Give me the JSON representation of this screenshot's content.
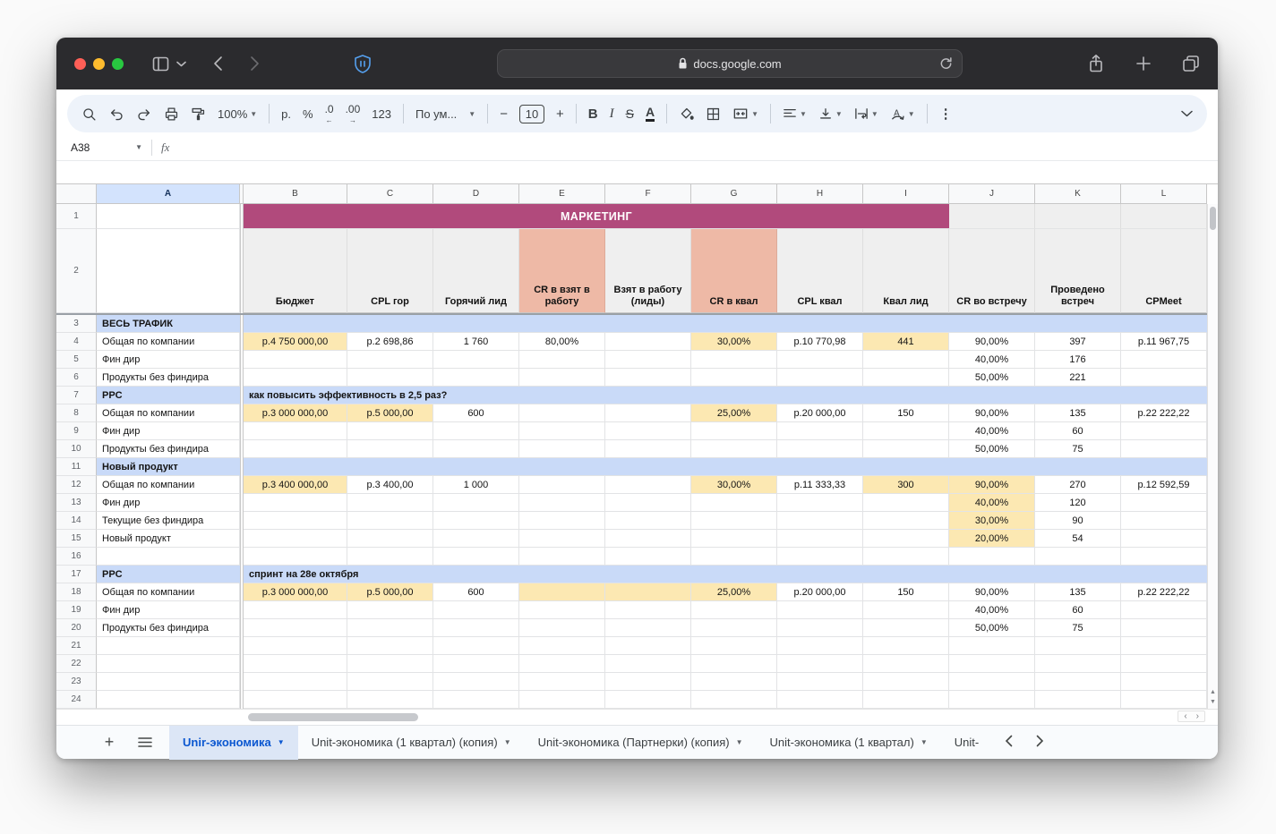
{
  "browser": {
    "url": "docs.google.com"
  },
  "toolbar": {
    "zoom": "100%",
    "currency": "р.",
    "percent": "%",
    "decrease_decimals": ".0",
    "increase_decimals": ".00",
    "number_format": "123",
    "font_family": "По ум...",
    "font_size": "10",
    "bold": "B",
    "italic": "I",
    "strikethrough": "S",
    "text_color": "A",
    "more": "⋮"
  },
  "formula_bar": {
    "name_box": "A38",
    "fx": "fx",
    "formula": ""
  },
  "grid": {
    "column_letters": [
      "A",
      "B",
      "C",
      "D",
      "E",
      "F",
      "G",
      "H",
      "I",
      "J",
      "K",
      "L"
    ],
    "selected_column": "A",
    "banner": {
      "row": 1,
      "text": "МАРКЕТИНГ"
    },
    "header_labels": [
      {
        "col": "B",
        "text": "Бюджет"
      },
      {
        "col": "C",
        "text": "CPL гор"
      },
      {
        "col": "D",
        "text": "Горячий лид"
      },
      {
        "col": "E",
        "text": "CR в взят в работу",
        "highlight": "salmon"
      },
      {
        "col": "F",
        "text": "Взят в работу (лиды)"
      },
      {
        "col": "G",
        "text": "CR в квал",
        "highlight": "salmon"
      },
      {
        "col": "H",
        "text": "CPL квал"
      },
      {
        "col": "I",
        "text": "Квал лид"
      },
      {
        "col": "J",
        "text": "CR во встречу"
      },
      {
        "col": "K",
        "text": "Проведено встреч"
      },
      {
        "col": "L",
        "text": "CPMeet"
      }
    ],
    "rows": [
      {
        "num": 3,
        "type": "section",
        "title": "ВЕСЬ ТРАФИК",
        "note": ""
      },
      {
        "num": 4,
        "type": "data",
        "cells": {
          "A": {
            "t": "Общая по компании"
          },
          "B": {
            "t": "р.4 750 000,00",
            "bg": "yellow"
          },
          "C": {
            "t": "р.2 698,86"
          },
          "D": {
            "t": "1 760"
          },
          "E": {
            "t": "80,00%"
          },
          "G": {
            "t": "30,00%",
            "bg": "yellow"
          },
          "H": {
            "t": "р.10 770,98"
          },
          "I": {
            "t": "441",
            "bg": "yellow"
          },
          "J": {
            "t": "90,00%"
          },
          "K": {
            "t": "397"
          },
          "L": {
            "t": "р.11 967,75"
          }
        }
      },
      {
        "num": 5,
        "type": "data",
        "cells": {
          "A": {
            "t": "Фин дир"
          },
          "J": {
            "t": "40,00%"
          },
          "K": {
            "t": "176"
          }
        }
      },
      {
        "num": 6,
        "type": "data",
        "cells": {
          "A": {
            "t": "Продукты без финдира"
          },
          "J": {
            "t": "50,00%"
          },
          "K": {
            "t": "221"
          }
        }
      },
      {
        "num": 7,
        "type": "section",
        "title": "PPC",
        "note": "как повысить эффективность в 2,5 раз?"
      },
      {
        "num": 8,
        "type": "data",
        "cells": {
          "A": {
            "t": "Общая по компании"
          },
          "B": {
            "t": "р.3 000 000,00",
            "bg": "yellow"
          },
          "C": {
            "t": "р.5 000,00",
            "bg": "yellow"
          },
          "D": {
            "t": "600"
          },
          "G": {
            "t": "25,00%",
            "bg": "yellow"
          },
          "H": {
            "t": "р.20 000,00"
          },
          "I": {
            "t": "150"
          },
          "J": {
            "t": "90,00%"
          },
          "K": {
            "t": "135"
          },
          "L": {
            "t": "р.22 222,22"
          }
        }
      },
      {
        "num": 9,
        "type": "data",
        "cells": {
          "A": {
            "t": "Фин дир"
          },
          "J": {
            "t": "40,00%"
          },
          "K": {
            "t": "60"
          }
        }
      },
      {
        "num": 10,
        "type": "data",
        "cells": {
          "A": {
            "t": "Продукты без финдира"
          },
          "J": {
            "t": "50,00%"
          },
          "K": {
            "t": "75"
          }
        }
      },
      {
        "num": 11,
        "type": "section",
        "title": "Новый продукт",
        "note": ""
      },
      {
        "num": 12,
        "type": "data",
        "cells": {
          "A": {
            "t": "Общая по компании"
          },
          "B": {
            "t": "р.3 400 000,00",
            "bg": "yellow"
          },
          "C": {
            "t": "р.3 400,00"
          },
          "D": {
            "t": "1 000"
          },
          "G": {
            "t": "30,00%",
            "bg": "yellow"
          },
          "H": {
            "t": "р.11 333,33"
          },
          "I": {
            "t": "300",
            "bg": "yellow"
          },
          "J": {
            "t": "90,00%",
            "bg": "yellow"
          },
          "K": {
            "t": "270"
          },
          "L": {
            "t": "р.12 592,59"
          }
        }
      },
      {
        "num": 13,
        "type": "data",
        "cells": {
          "A": {
            "t": "Фин дир"
          },
          "J": {
            "t": "40,00%",
            "bg": "yellow"
          },
          "K": {
            "t": "120"
          }
        }
      },
      {
        "num": 14,
        "type": "data",
        "cells": {
          "A": {
            "t": "Текущие без финдира"
          },
          "J": {
            "t": "30,00%",
            "bg": "yellow"
          },
          "K": {
            "t": "90"
          }
        }
      },
      {
        "num": 15,
        "type": "data",
        "cells": {
          "A": {
            "t": "Новый продукт"
          },
          "J": {
            "t": "20,00%",
            "bg": "yellow"
          },
          "K": {
            "t": "54"
          }
        }
      },
      {
        "num": 16,
        "type": "empty"
      },
      {
        "num": 17,
        "type": "section",
        "title": "PPC",
        "note": "спринт на 28е октября"
      },
      {
        "num": 18,
        "type": "data",
        "cells": {
          "A": {
            "t": "Общая по компании"
          },
          "B": {
            "t": "р.3 000 000,00",
            "bg": "yellow"
          },
          "C": {
            "t": "р.5 000,00",
            "bg": "yellow"
          },
          "D": {
            "t": "600"
          },
          "E": {
            "t": "",
            "bg": "yellow"
          },
          "F": {
            "t": "",
            "bg": "yellow"
          },
          "G": {
            "t": "25,00%",
            "bg": "yellow"
          },
          "H": {
            "t": "р.20 000,00"
          },
          "I": {
            "t": "150"
          },
          "J": {
            "t": "90,00%"
          },
          "K": {
            "t": "135"
          },
          "L": {
            "t": "р.22 222,22"
          }
        }
      },
      {
        "num": 19,
        "type": "data",
        "cells": {
          "A": {
            "t": "Фин дир"
          },
          "J": {
            "t": "40,00%"
          },
          "K": {
            "t": "60"
          }
        }
      },
      {
        "num": 20,
        "type": "data",
        "cells": {
          "A": {
            "t": "Продукты без финдира"
          },
          "J": {
            "t": "50,00%"
          },
          "K": {
            "t": "75"
          }
        }
      },
      {
        "num": 21,
        "type": "empty"
      },
      {
        "num": 22,
        "type": "empty"
      },
      {
        "num": 23,
        "type": "empty"
      },
      {
        "num": 24,
        "type": "empty"
      }
    ]
  },
  "sheet_tabs": {
    "active": {
      "label": "Unir-экономика"
    },
    "tabs": [
      {
        "label": "Unit-экономика (1 квартал) (копия)"
      },
      {
        "label": "Unit-экономика (Партнерки) (копия)"
      },
      {
        "label": "Unit-экономика (1 квартал)"
      }
    ],
    "truncated": "Unit-"
  },
  "palette": {
    "banner": "#b14a7c",
    "section_row": "#c9daf8",
    "highlight_yellow": "#fce8b2",
    "highlight_salmon": "#eeb9a6",
    "header_gray": "#efefef",
    "selected_col_header": "#d3e3fd",
    "active_tab_bg": "#dce6f6",
    "active_tab_text": "#0b57d0"
  }
}
